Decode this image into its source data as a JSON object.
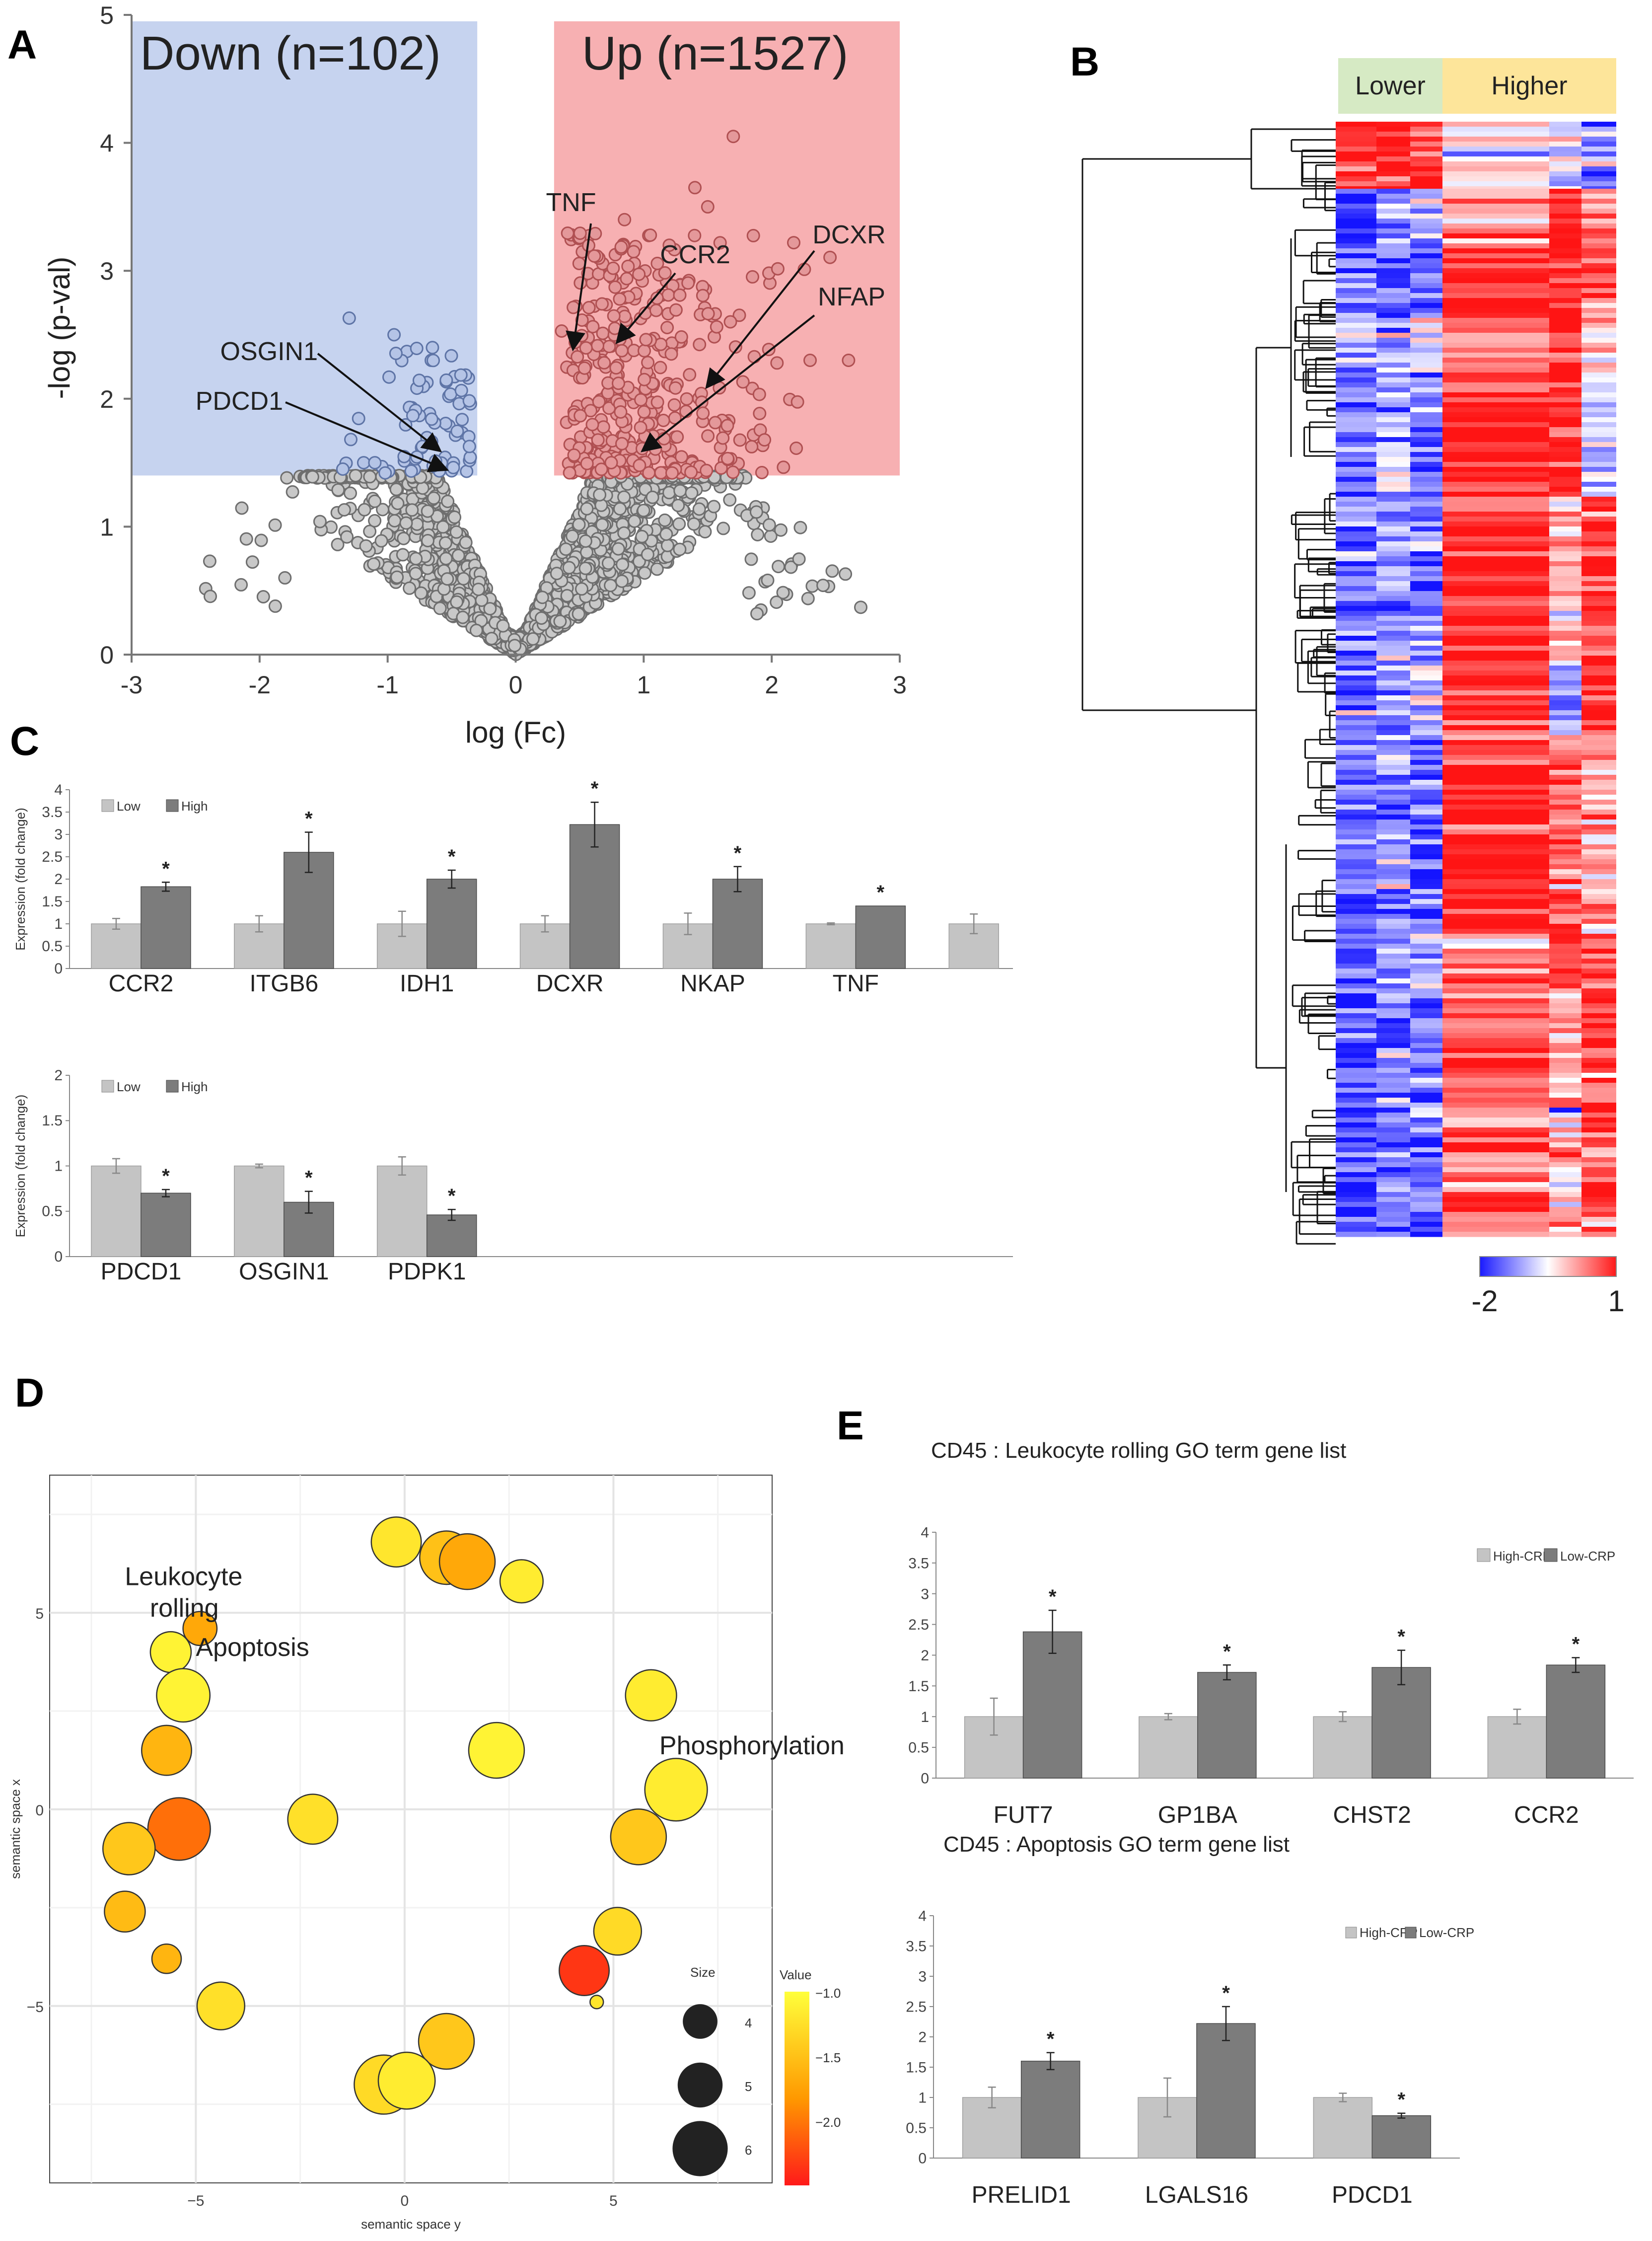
{
  "panel_labels": {
    "a": "A",
    "b": "B",
    "c": "C",
    "d": "D",
    "e": "E"
  },
  "chart_data": [
    {
      "id": "A",
      "type": "scatter",
      "title": "Volcano plot",
      "xlabel": "log (Fc)",
      "ylabel": "-log (p-val)",
      "xlim": [
        -3,
        3
      ],
      "ylim": [
        0,
        5
      ],
      "xticks": [
        "-3",
        "-2",
        "-1",
        "0",
        "1",
        "2",
        "3"
      ],
      "yticks": [
        "0",
        "1",
        "2",
        "3",
        "4",
        "5"
      ],
      "threshold_y": 1.4,
      "down_region_x": [
        -3,
        -0.3
      ],
      "up_region_x": [
        0.3,
        3
      ],
      "region_labels": {
        "down": "Down (n=102)",
        "up": "Up (n=1527)"
      },
      "colors": {
        "down": "#c6d3ef",
        "up": "#f7b0b2",
        "grey_point": "#c8c8c8",
        "down_point": "#b5c4e6",
        "up_point": "#e4989a"
      },
      "labeled_genes": [
        {
          "name": "TNF",
          "x": 0.45,
          "y": 2.4
        },
        {
          "name": "CCR2",
          "x": 0.8,
          "y": 2.45
        },
        {
          "name": "DCXR",
          "x": 1.5,
          "y": 2.1
        },
        {
          "name": "NFAP",
          "x": 1.0,
          "y": 1.6
        },
        {
          "name": "OSGIN1",
          "x": -0.6,
          "y": 1.6
        },
        {
          "name": "PDCD1",
          "x": -0.55,
          "y": 1.45
        }
      ]
    },
    {
      "id": "B",
      "type": "heatmap",
      "column_groups": [
        "Lower",
        "Higher"
      ],
      "group_colors": [
        "#d6eac4",
        "#fde59a"
      ],
      "colorbar": {
        "min": "-2",
        "max": "1",
        "low_color": "#1a1aff",
        "mid_color": "#ffffff",
        "high_color": "#ff1a1a"
      }
    },
    {
      "id": "C1",
      "type": "bar",
      "ylabel": "Expression (fold change)",
      "ylim": [
        0,
        4
      ],
      "yticks": [
        "0",
        "0.5",
        "1",
        "1.5",
        "2",
        "2.5",
        "3",
        "3.5",
        "4"
      ],
      "legend": [
        "Low",
        "High"
      ],
      "categories": [
        "CCR2",
        "ITGB6",
        "IDH1",
        "DCXR",
        "NKAP",
        "TNF",
        ""
      ],
      "series": [
        {
          "name": "Low",
          "values": [
            1,
            1,
            1,
            1,
            1,
            1,
            1
          ],
          "errors": [
            0.12,
            0.18,
            0.28,
            0.18,
            0.24,
            0.02,
            0.22
          ]
        },
        {
          "name": "High",
          "values": [
            1.83,
            2.6,
            2.0,
            3.22,
            2.0,
            1.4,
            null
          ],
          "errors": [
            0.1,
            0.45,
            0.2,
            0.5,
            0.28,
            0.0,
            null
          ]
        }
      ],
      "significance": [
        "*",
        "*",
        "*",
        "*",
        "*",
        "*",
        ""
      ]
    },
    {
      "id": "C2",
      "type": "bar",
      "ylabel": "Expression (fold change)",
      "ylim": [
        0,
        2
      ],
      "yticks": [
        "0",
        "0.5",
        "1",
        "1.5",
        "2"
      ],
      "legend": [
        "Low",
        "High"
      ],
      "categories": [
        "PDCD1",
        "OSGIN1",
        "PDPK1"
      ],
      "series": [
        {
          "name": "Low",
          "values": [
            1,
            1,
            1
          ],
          "errors": [
            0.08,
            0.02,
            0.1
          ]
        },
        {
          "name": "High",
          "values": [
            0.7,
            0.6,
            0.46
          ],
          "errors": [
            0.04,
            0.12,
            0.06
          ]
        }
      ],
      "significance": [
        "*",
        "*",
        "*"
      ]
    },
    {
      "id": "D",
      "type": "scatter",
      "subtype": "bubble",
      "xlabel": "semantic space y",
      "ylabel": "semantic space x",
      "xlim": [
        -8.5,
        8.8
      ],
      "ylim": [
        -9.5,
        8.5
      ],
      "xticks": [
        {
          "value": -5,
          "label": "−5"
        },
        {
          "value": 0,
          "label": "0"
        },
        {
          "value": 5,
          "label": "5"
        }
      ],
      "yticks": [
        {
          "value": 5,
          "label": "5"
        },
        {
          "value": 0,
          "label": "0"
        },
        {
          "value": -5,
          "label": "−5"
        }
      ],
      "annotations": [
        {
          "text": "Leukocyte",
          "x": -6.7,
          "y": 5.7
        },
        {
          "text": "rolling",
          "x": -6.1,
          "y": 4.9
        },
        {
          "text": "Apoptosis",
          "x": -5.0,
          "y": 3.9
        },
        {
          "text": "Phosphorylation",
          "x": 6.1,
          "y": 1.4
        }
      ],
      "size_legend": {
        "title": "Size",
        "values": [
          4,
          5,
          6
        ]
      },
      "color_legend": {
        "title": "Value",
        "ticks": [
          "−1.0",
          "−1.5",
          "−2.0"
        ],
        "range": [
          -2.5,
          -1.0
        ]
      },
      "points": [
        {
          "x": -0.2,
          "y": 6.8,
          "size": 5.0,
          "value": -1.2
        },
        {
          "x": 1.0,
          "y": 6.4,
          "size": 5.3,
          "value": -1.5
        },
        {
          "x": 1.5,
          "y": 6.3,
          "size": 5.5,
          "value": -1.7
        },
        {
          "x": 2.8,
          "y": 5.8,
          "size": 4.4,
          "value": -1.15
        },
        {
          "x": -4.9,
          "y": 4.6,
          "size": 3.6,
          "value": -1.7
        },
        {
          "x": -5.6,
          "y": 4.0,
          "size": 4.2,
          "value": -1.1
        },
        {
          "x": -5.3,
          "y": 2.9,
          "size": 5.3,
          "value": -1.1
        },
        {
          "x": 5.9,
          "y": 2.9,
          "size": 5.1,
          "value": -1.15
        },
        {
          "x": 2.2,
          "y": 1.5,
          "size": 5.5,
          "value": -1.1
        },
        {
          "x": -5.7,
          "y": 1.5,
          "size": 5.0,
          "value": -1.6
        },
        {
          "x": 6.5,
          "y": 0.5,
          "size": 6.1,
          "value": -1.15
        },
        {
          "x": -2.2,
          "y": -0.25,
          "size": 5.0,
          "value": -1.25
        },
        {
          "x": 5.6,
          "y": -0.7,
          "size": 5.5,
          "value": -1.45
        },
        {
          "x": -5.4,
          "y": -0.5,
          "size": 6.1,
          "value": -2.05
        },
        {
          "x": -6.6,
          "y": -1.0,
          "size": 5.2,
          "value": -1.45
        },
        {
          "x": -6.7,
          "y": -2.6,
          "size": 4.2,
          "value": -1.55
        },
        {
          "x": 5.1,
          "y": -3.1,
          "size": 4.8,
          "value": -1.3
        },
        {
          "x": -5.7,
          "y": -3.8,
          "size": 3.2,
          "value": -1.6
        },
        {
          "x": 4.3,
          "y": -4.1,
          "size": 5.0,
          "value": -2.35
        },
        {
          "x": 4.6,
          "y": -4.9,
          "size": 1.8,
          "value": -1.2
        },
        {
          "x": -4.4,
          "y": -5.0,
          "size": 4.8,
          "value": -1.25
        },
        {
          "x": 1.0,
          "y": -5.9,
          "size": 5.5,
          "value": -1.45
        },
        {
          "x": -0.5,
          "y": -7.0,
          "size": 5.8,
          "value": -1.3
        },
        {
          "x": 0.05,
          "y": -6.9,
          "size": 5.6,
          "value": -1.15
        }
      ]
    },
    {
      "id": "E1",
      "type": "bar",
      "title": "CD45 : Leukocyte rolling GO term gene list",
      "ylim": [
        0,
        4
      ],
      "yticks": [
        "0",
        "0.5",
        "1",
        "1.5",
        "2",
        "2.5",
        "3",
        "3.5",
        "4"
      ],
      "legend": [
        "High-CRP",
        "Low-CRP"
      ],
      "categories": [
        "FUT7",
        "GP1BA",
        "CHST2",
        "CCR2"
      ],
      "series": [
        {
          "name": "High-CRP",
          "values": [
            1,
            1,
            1,
            1
          ],
          "errors": [
            0.3,
            0.05,
            0.08,
            0.12
          ]
        },
        {
          "name": "Low-CRP",
          "values": [
            2.38,
            1.72,
            1.8,
            1.84
          ],
          "errors": [
            0.35,
            0.12,
            0.28,
            0.12
          ]
        }
      ],
      "significance": [
        "*",
        "*",
        "*",
        "*"
      ]
    },
    {
      "id": "E2",
      "type": "bar",
      "title": "CD45 : Apoptosis GO term gene list",
      "ylim": [
        0,
        4
      ],
      "yticks": [
        "0",
        "0.5",
        "1",
        "1.5",
        "2",
        "2.5",
        "3",
        "3.5",
        "4"
      ],
      "legend": [
        "High-CRP",
        "Low-CRP"
      ],
      "categories": [
        "PRELID1",
        "LGALS16",
        "PDCD1"
      ],
      "series": [
        {
          "name": "High-CRP",
          "values": [
            1,
            1,
            1
          ],
          "errors": [
            0.17,
            0.32,
            0.07
          ]
        },
        {
          "name": "Low-CRP",
          "values": [
            1.6,
            2.22,
            0.7
          ],
          "errors": [
            0.14,
            0.28,
            0.04
          ]
        }
      ],
      "significance": [
        "*",
        "*",
        "*"
      ]
    }
  ]
}
